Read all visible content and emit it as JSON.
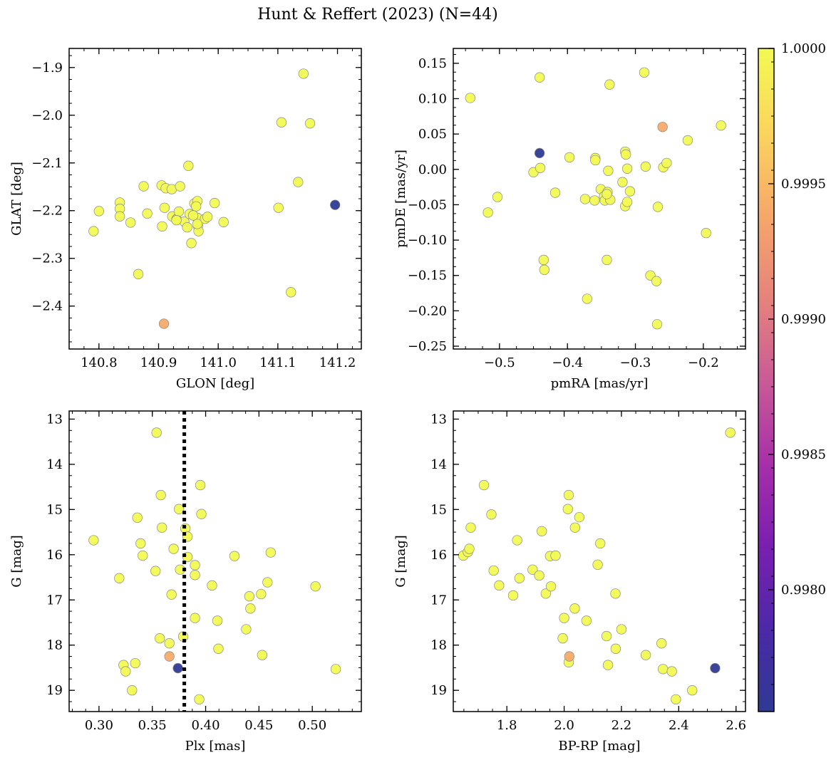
{
  "chart_data": {
    "type": "scatter",
    "title": "Hunt & Reffert (2023) (N=44)",
    "colorbar": {
      "colormap": "plasma",
      "vmin": 0.99755,
      "vmax": 1.0,
      "ticks": [
        0.998,
        0.9985,
        0.999,
        0.9995,
        1.0
      ],
      "tick_labels": [
        "0.9980",
        "0.9985",
        "0.9990",
        "0.9995",
        "1.0000"
      ]
    },
    "panels": [
      {
        "id": "glon-glat",
        "xlabel": "GLON [deg]",
        "ylabel": "GLAT [deg]",
        "xlim": [
          140.75,
          141.24
        ],
        "ylim": [
          -2.49,
          -1.86
        ],
        "invert_y": false,
        "xticks": [
          140.8,
          140.9,
          141.0,
          141.1,
          141.2
        ],
        "xtick_labels": [
          "140.8",
          "140.9",
          "141.0",
          "141.1",
          "141.2"
        ],
        "yticks": [
          -1.9,
          -2.0,
          -2.1,
          -2.2,
          -2.3,
          -2.4
        ],
        "ytick_labels": [
          "−1.9",
          "−2.0",
          "−2.1",
          "−2.2",
          "−2.3",
          "−2.4"
        ],
        "points": [
          [
            140.791,
            -2.243,
            1.0
          ],
          [
            140.8,
            -2.201,
            1.0
          ],
          [
            140.835,
            -2.183,
            1.0
          ],
          [
            140.835,
            -2.196,
            1.0
          ],
          [
            140.835,
            -2.212,
            1.0
          ],
          [
            140.853,
            -2.225,
            1.0
          ],
          [
            140.866,
            -2.333,
            1.0
          ],
          [
            140.875,
            -2.149,
            1.0
          ],
          [
            140.881,
            -2.206,
            1.0
          ],
          [
            140.905,
            -2.147,
            1.0
          ],
          [
            140.912,
            -2.153,
            1.0
          ],
          [
            140.922,
            -2.155,
            1.0
          ],
          [
            140.91,
            -2.194,
            1.0
          ],
          [
            140.906,
            -2.233,
            1.0
          ],
          [
            140.923,
            -2.212,
            1.0
          ],
          [
            140.93,
            -2.218,
            1.0
          ],
          [
            140.934,
            -2.202,
            1.0
          ],
          [
            140.936,
            -2.149,
            1.0
          ],
          [
            140.943,
            -2.223,
            1.0
          ],
          [
            140.948,
            -2.235,
            1.0
          ],
          [
            140.95,
            -2.106,
            1.0
          ],
          [
            140.952,
            -2.207,
            1.0
          ],
          [
            140.955,
            -2.268,
            1.0
          ],
          [
            140.96,
            -2.185,
            1.0
          ],
          [
            140.965,
            -2.18,
            1.0
          ],
          [
            140.963,
            -2.191,
            1.0
          ],
          [
            140.965,
            -2.215,
            1.0
          ],
          [
            140.966,
            -2.232,
            1.0
          ],
          [
            140.967,
            -2.243,
            1.0
          ],
          [
            140.978,
            -2.217,
            1.0
          ],
          [
            140.982,
            -2.213,
            1.0
          ],
          [
            140.994,
            -2.184,
            1.0
          ],
          [
            141.009,
            -2.224,
            1.0
          ],
          [
            141.101,
            -2.194,
            1.0
          ],
          [
            141.106,
            -2.015,
            1.0
          ],
          [
            141.122,
            -2.371,
            1.0
          ],
          [
            141.134,
            -2.14,
            1.0
          ],
          [
            141.143,
            -1.913,
            1.0
          ],
          [
            141.154,
            -2.017,
            1.0
          ],
          [
            140.965,
            -2.228,
            1.0
          ],
          [
            140.958,
            -2.21,
            1.0
          ],
          [
            140.93,
            -2.22,
            1.0
          ],
          [
            140.909,
            -2.437,
            0.9994
          ],
          [
            141.196,
            -2.188,
            0.99755
          ]
        ]
      },
      {
        "id": "pmra-pmde",
        "xlabel": "pmRA [mas/yr]",
        "ylabel": "pmDE [mas/yr]",
        "xlim": [
          -0.568,
          -0.138
        ],
        "ylim": [
          -0.254,
          0.171
        ],
        "invert_y": false,
        "xticks": [
          -0.5,
          -0.4,
          -0.3,
          -0.2
        ],
        "xtick_labels": [
          "−0.5",
          "−0.4",
          "−0.3",
          "−0.2"
        ],
        "yticks": [
          0.15,
          0.1,
          0.05,
          0.0,
          -0.05,
          -0.1,
          -0.15,
          -0.2,
          -0.25
        ],
        "ytick_labels": [
          "0.15",
          "0.10",
          "0.05",
          "0.00",
          "−0.05",
          "−0.10",
          "−0.15",
          "−0.20",
          "−0.25"
        ],
        "points": [
          [
            -0.543,
            0.101,
            1.0
          ],
          [
            -0.517,
            -0.061,
            1.0
          ],
          [
            -0.503,
            -0.039,
            1.0
          ],
          [
            -0.45,
            -0.004,
            1.0
          ],
          [
            -0.441,
            0.13,
            1.0
          ],
          [
            -0.44,
            0.002,
            1.0
          ],
          [
            -0.435,
            -0.128,
            1.0
          ],
          [
            -0.434,
            -0.142,
            1.0
          ],
          [
            -0.418,
            -0.033,
            1.0
          ],
          [
            -0.397,
            0.017,
            1.0
          ],
          [
            -0.374,
            -0.042,
            1.0
          ],
          [
            -0.371,
            -0.183,
            1.0
          ],
          [
            -0.359,
            0.016,
            1.0
          ],
          [
            -0.359,
            0.013,
            1.0
          ],
          [
            -0.351,
            -0.028,
            1.0
          ],
          [
            -0.346,
            -0.038,
            1.0
          ],
          [
            -0.345,
            -0.044,
            1.0
          ],
          [
            -0.342,
            -0.128,
            1.0
          ],
          [
            -0.341,
            -0.032,
            1.0
          ],
          [
            -0.34,
            -0.002,
            1.0
          ],
          [
            -0.338,
            0.12,
            1.0
          ],
          [
            -0.337,
            -0.043,
            1.0
          ],
          [
            -0.319,
            -0.018,
            1.0
          ],
          [
            -0.315,
            0.025,
            1.0
          ],
          [
            -0.314,
            0.021,
            1.0
          ],
          [
            -0.315,
            -0.052,
            1.0
          ],
          [
            -0.312,
            -0.046,
            1.0
          ],
          [
            -0.312,
            0.001,
            1.0
          ],
          [
            -0.308,
            -0.031,
            1.0
          ],
          [
            -0.287,
            0.137,
            1.0
          ],
          [
            -0.285,
            0.004,
            1.0
          ],
          [
            -0.278,
            -0.15,
            1.0
          ],
          [
            -0.269,
            -0.158,
            1.0
          ],
          [
            -0.268,
            -0.219,
            1.0
          ],
          [
            -0.267,
            -0.053,
            1.0
          ],
          [
            -0.259,
            0.003,
            1.0
          ],
          [
            -0.254,
            0.009,
            1.0
          ],
          [
            -0.223,
            0.041,
            1.0
          ],
          [
            -0.196,
            -0.09,
            1.0
          ],
          [
            -0.174,
            0.062,
            1.0
          ],
          [
            -0.36,
            -0.044,
            1.0
          ],
          [
            -0.342,
            -0.035,
            1.0
          ],
          [
            -0.26,
            0.06,
            0.9994
          ],
          [
            -0.441,
            0.023,
            0.99755
          ]
        ]
      },
      {
        "id": "plx-g",
        "xlabel": "Plx [mas]",
        "ylabel": "G [mag]",
        "xlim": [
          0.272,
          0.546
        ],
        "ylim": [
          19.47,
          12.82
        ],
        "invert_y": true,
        "vline": {
          "x": 0.38,
          "style": "dotted",
          "color": "#000000"
        },
        "xticks": [
          0.3,
          0.35,
          0.4,
          0.45,
          0.5
        ],
        "xtick_labels": [
          "0.30",
          "0.35",
          "0.40",
          "0.45",
          "0.50"
        ],
        "yticks": [
          13,
          14,
          15,
          16,
          17,
          18,
          19
        ],
        "ytick_labels": [
          "13",
          "14",
          "15",
          "16",
          "17",
          "18",
          "19"
        ],
        "points": [
          [
            0.295,
            15.68,
            1.0
          ],
          [
            0.319,
            16.52,
            1.0
          ],
          [
            0.323,
            18.44,
            1.0
          ],
          [
            0.325,
            18.58,
            1.0
          ],
          [
            0.331,
            19.0,
            1.0
          ],
          [
            0.334,
            18.4,
            1.0
          ],
          [
            0.336,
            15.18,
            1.0
          ],
          [
            0.339,
            15.75,
            1.0
          ],
          [
            0.341,
            16.02,
            1.0
          ],
          [
            0.353,
            16.36,
            1.0
          ],
          [
            0.354,
            13.3,
            1.0
          ],
          [
            0.357,
            17.85,
            1.0
          ],
          [
            0.358,
            14.68,
            1.0
          ],
          [
            0.359,
            15.4,
            1.0
          ],
          [
            0.366,
            17.96,
            1.0
          ],
          [
            0.368,
            16.88,
            1.0
          ],
          [
            0.37,
            15.87,
            1.0
          ],
          [
            0.375,
            14.99,
            1.0
          ],
          [
            0.376,
            16.33,
            1.0
          ],
          [
            0.379,
            17.81,
            1.0
          ],
          [
            0.381,
            15.42,
            1.0
          ],
          [
            0.383,
            16.05,
            1.0
          ],
          [
            0.39,
            16.23,
            1.0
          ],
          [
            0.39,
            16.45,
            1.0
          ],
          [
            0.39,
            17.4,
            1.0
          ],
          [
            0.394,
            19.2,
            1.0
          ],
          [
            0.395,
            14.46,
            1.0
          ],
          [
            0.396,
            15.1,
            1.0
          ],
          [
            0.406,
            16.68,
            1.0
          ],
          [
            0.411,
            17.46,
            1.0
          ],
          [
            0.412,
            18.08,
            1.0
          ],
          [
            0.427,
            16.03,
            1.0
          ],
          [
            0.438,
            17.65,
            1.0
          ],
          [
            0.441,
            16.92,
            1.0
          ],
          [
            0.442,
            17.19,
            1.0
          ],
          [
            0.452,
            16.87,
            1.0
          ],
          [
            0.453,
            18.22,
            1.0
          ],
          [
            0.458,
            16.61,
            1.0
          ],
          [
            0.461,
            15.95,
            1.0
          ],
          [
            0.503,
            16.7,
            1.0
          ],
          [
            0.522,
            18.53,
            1.0
          ],
          [
            0.383,
            15.6,
            1.0
          ],
          [
            0.366,
            18.25,
            0.9994
          ],
          [
            0.374,
            18.51,
            0.99755
          ]
        ]
      },
      {
        "id": "bprp-g",
        "xlabel": "BP-RP [mag]",
        "ylabel": "G [mag]",
        "xlim": [
          1.613,
          2.633
        ],
        "ylim": [
          19.47,
          12.82
        ],
        "invert_y": true,
        "xticks": [
          1.8,
          2.0,
          2.2,
          2.4,
          2.6
        ],
        "xtick_labels": [
          "1.8",
          "2.0",
          "2.2",
          "2.4",
          "2.6"
        ],
        "yticks": [
          13,
          14,
          15,
          16,
          17,
          18,
          19
        ],
        "ytick_labels": [
          "13",
          "14",
          "15",
          "16",
          "17",
          "18",
          "19"
        ],
        "points": [
          [
            1.648,
            16.02,
            1.0
          ],
          [
            1.664,
            15.94,
            1.0
          ],
          [
            1.669,
            15.87,
            1.0
          ],
          [
            1.674,
            15.4,
            1.0
          ],
          [
            1.72,
            14.46,
            1.0
          ],
          [
            1.746,
            15.11,
            1.0
          ],
          [
            1.754,
            16.35,
            1.0
          ],
          [
            1.773,
            16.68,
            1.0
          ],
          [
            1.822,
            16.9,
            1.0
          ],
          [
            1.836,
            15.68,
            1.0
          ],
          [
            1.844,
            16.52,
            1.0
          ],
          [
            1.89,
            16.33,
            1.0
          ],
          [
            1.913,
            16.46,
            1.0
          ],
          [
            1.922,
            15.48,
            1.0
          ],
          [
            1.936,
            16.86,
            1.0
          ],
          [
            1.951,
            16.03,
            1.0
          ],
          [
            1.954,
            16.7,
            1.0
          ],
          [
            1.97,
            16.02,
            1.0
          ],
          [
            1.995,
            17.85,
            1.0
          ],
          [
            2.0,
            17.4,
            1.0
          ],
          [
            2.013,
            14.99,
            1.0
          ],
          [
            2.016,
            14.68,
            1.0
          ],
          [
            2.037,
            17.19,
            1.0
          ],
          [
            2.038,
            15.4,
            1.0
          ],
          [
            2.053,
            15.17,
            1.0
          ],
          [
            2.078,
            17.46,
            1.0
          ],
          [
            2.117,
            16.22,
            1.0
          ],
          [
            2.126,
            15.75,
            1.0
          ],
          [
            2.148,
            17.8,
            1.0
          ],
          [
            2.153,
            18.44,
            1.0
          ],
          [
            2.18,
            18.08,
            1.0
          ],
          [
            2.179,
            16.86,
            1.0
          ],
          [
            2.2,
            17.65,
            1.0
          ],
          [
            2.285,
            18.22,
            1.0
          ],
          [
            2.34,
            17.96,
            1.0
          ],
          [
            2.345,
            18.53,
            1.0
          ],
          [
            2.376,
            18.58,
            1.0
          ],
          [
            2.39,
            19.2,
            1.0
          ],
          [
            2.447,
            19.0,
            1.0
          ],
          [
            2.58,
            13.3,
            1.0
          ],
          [
            2.016,
            18.38,
            1.0
          ],
          [
            2.018,
            18.25,
            0.9994
          ],
          [
            2.527,
            18.51,
            0.99755
          ]
        ]
      }
    ]
  }
}
